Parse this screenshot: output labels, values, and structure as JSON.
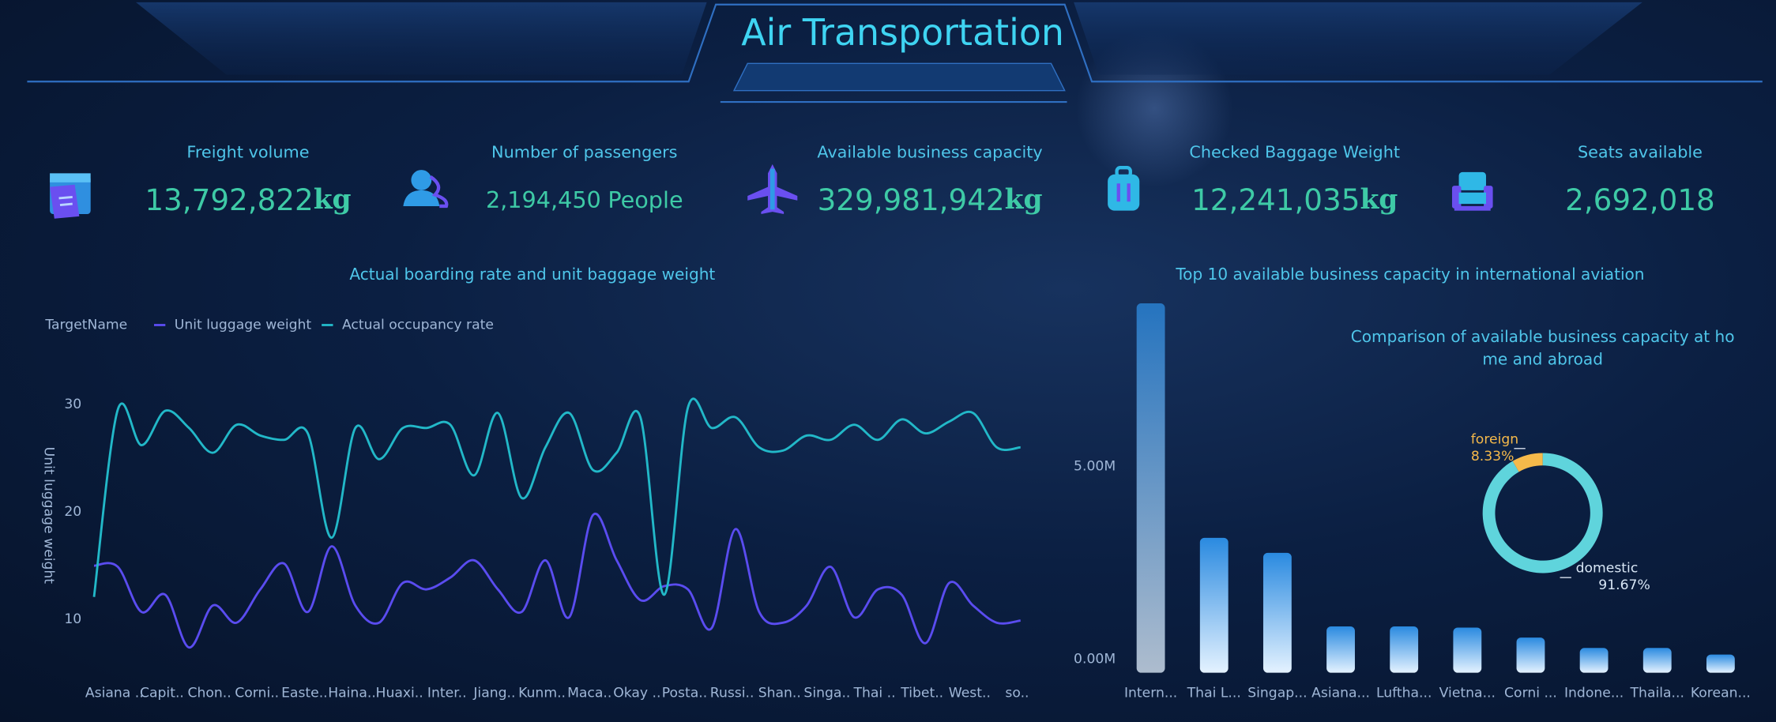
{
  "header": {
    "title": "Air Transportation"
  },
  "kpis": [
    {
      "label": "Freight volume",
      "value": "13,792,822",
      "unit": "kg"
    },
    {
      "label": "Number of passengers",
      "value": "2,194,450",
      "unit": "People"
    },
    {
      "label": "Available business capacity",
      "value": "329,981,942",
      "unit": "kg"
    },
    {
      "label": "Checked Baggage Weight",
      "value": "12,241,035",
      "unit": "kg"
    },
    {
      "label": "Seats available",
      "value": "2,692,018"
    }
  ],
  "chart_data": [
    {
      "type": "line",
      "title": "Actual boarding rate and unit baggage weight",
      "legend_title": "TargetName",
      "y_label": "Unit luggage weight",
      "categories": [
        "Asiana ..",
        null,
        "Capit..",
        null,
        "Chon..",
        null,
        "Corni..",
        null,
        "Easte..",
        null,
        "Haina..",
        null,
        "Huaxi..",
        null,
        "Inter..",
        null,
        "Jiang..",
        null,
        "Kunm..",
        null,
        "Maca..",
        null,
        "Okay ..",
        null,
        "Posta..",
        null,
        "Russi..",
        null,
        "Shan..",
        null,
        "Singa..",
        null,
        "Thai ..",
        null,
        "Tibet..",
        null,
        "West..",
        null,
        "so..",
        null
      ],
      "series": [
        {
          "name": "Unit luggage weight",
          "color": "#5a4cf0",
          "values": [
            15.0,
            14.9,
            10.7,
            12.3,
            7.4,
            11.3,
            9.7,
            12.8,
            15.2,
            10.7,
            16.8,
            11.3,
            9.7,
            13.4,
            12.8,
            13.9,
            15.5,
            12.8,
            10.7,
            15.5,
            10.2,
            19.7,
            15.5,
            11.8,
            13.1,
            12.8,
            9.2,
            18.4,
            10.7,
            9.7,
            11.3,
            14.9,
            10.2,
            12.8,
            12.3,
            7.8,
            13.4,
            11.3,
            9.7,
            9.9
          ]
        },
        {
          "name": "Actual occupancy rate",
          "color": "#22b8c8",
          "values": [
            12.1,
            29.5,
            26.2,
            29.4,
            27.8,
            25.5,
            28.1,
            27.1,
            26.7,
            27.3,
            17.6,
            27.8,
            24.9,
            27.8,
            27.8,
            28.1,
            23.4,
            29.2,
            21.3,
            26.0,
            29.2,
            23.9,
            25.5,
            28.8,
            12.3,
            29.7,
            27.8,
            28.8,
            26.0,
            25.7,
            27.1,
            26.7,
            28.1,
            26.7,
            28.6,
            27.3,
            28.4,
            29.2,
            26.0,
            26.0
          ]
        }
      ],
      "ylim": [
        5,
        35
      ],
      "yticks": [
        10,
        20,
        30
      ]
    },
    {
      "type": "bar",
      "title": "Top 10 available business capacity in international aviation",
      "categories": [
        "Intern...",
        "Thai L...",
        "Singap...",
        "Asiana...",
        "Luftha...",
        "Vietna...",
        "Corni ...",
        "Indone...",
        "Thaila...",
        "Korean..."
      ],
      "values": [
        9240000,
        3150000,
        2760000,
        850000,
        850000,
        820000,
        560000,
        290000,
        290000,
        120000
      ],
      "color": "#2a8ae0",
      "ylim": [
        0,
        10000000
      ],
      "yticks": [
        {
          "value": 0,
          "label": "0.00M"
        },
        {
          "value": 5000000,
          "label": "5.00M"
        }
      ]
    },
    {
      "type": "pie",
      "title": "Comparison of available business capacity at home and abroad",
      "categories": [
        "domestic",
        "foreign"
      ],
      "values": [
        91.67,
        8.33
      ],
      "value_labels": [
        "91.67%",
        "8.33%"
      ],
      "colors": [
        "#5fd4dc",
        "#f5b94a"
      ]
    }
  ]
}
